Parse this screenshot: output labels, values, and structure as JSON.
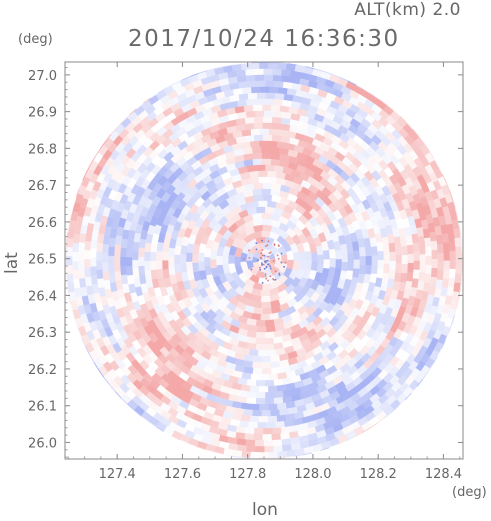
{
  "header": {
    "altitude_label": "ALT(km) 2.0",
    "datetime": "2017/10/24 16:36:30"
  },
  "axes": {
    "y_unit": "(deg)",
    "x_unit": "(deg)",
    "y_label": "lat",
    "x_label": "lon"
  },
  "colors": {
    "positive": "#f4a8a8",
    "negative": "#a8b4f4",
    "neutral": "#ffffff",
    "frame": "#888888"
  },
  "chart_data": {
    "type": "heatmap",
    "title": "2017/10/24 16:36:30",
    "subtitle": "ALT(km) 2.0",
    "xlabel": "lon",
    "ylabel": "lat",
    "xlim": [
      127.24,
      128.46
    ],
    "ylim": [
      25.955,
      27.035
    ],
    "x_ticks": [
      127.4,
      127.6,
      127.8,
      128.0,
      128.2,
      128.4
    ],
    "x_tick_labels": [
      "127.4",
      "127.6",
      "127.8",
      "128.0",
      "128.2",
      "128.4"
    ],
    "y_ticks": [
      26.0,
      26.1,
      26.2,
      26.3,
      26.4,
      26.5,
      26.6,
      26.7,
      26.8,
      26.9,
      27.0
    ],
    "y_tick_labels": [
      "26.0",
      "26.1",
      "26.2",
      "26.3",
      "26.4",
      "26.5",
      "26.6",
      "26.7",
      "26.8",
      "26.9",
      "27.0"
    ],
    "radar_center": [
      127.85,
      26.495
    ],
    "radar_radius_deg_lat": 0.54,
    "grid": false
  }
}
